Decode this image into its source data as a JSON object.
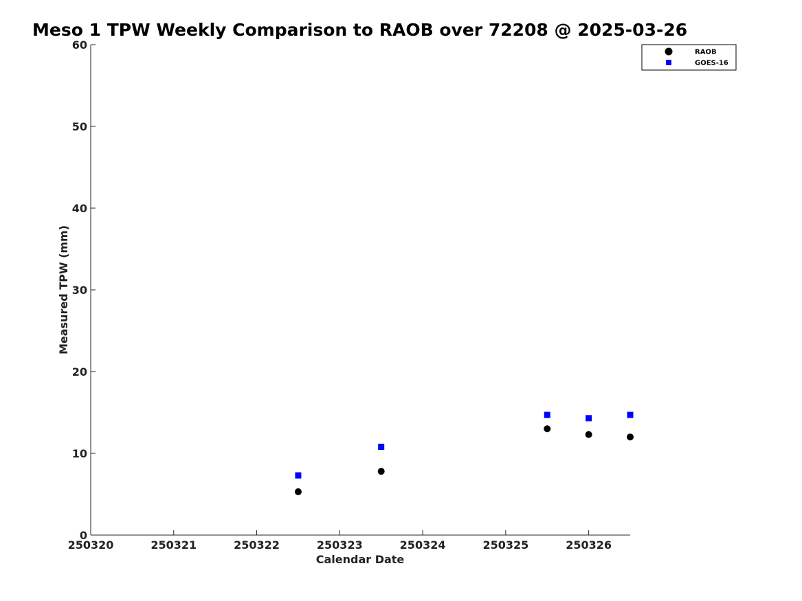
{
  "chart_data": {
    "type": "scatter",
    "title": "Meso 1 TPW Weekly Comparison to RAOB over 72208 @ 2025-03-26",
    "xlabel": "Calendar Date",
    "ylabel": "Measured TPW (mm)",
    "xlim": [
      250320,
      250326.5
    ],
    "ylim": [
      0,
      60
    ],
    "xticks": [
      250320,
      250321,
      250322,
      250323,
      250324,
      250325,
      250326
    ],
    "xtick_labels": [
      "250320",
      "250321",
      "250322",
      "250323",
      "250324",
      "250325",
      "250326"
    ],
    "yticks": [
      0,
      10,
      20,
      30,
      40,
      50,
      60
    ],
    "ytick_labels": [
      "0",
      "10",
      "20",
      "30",
      "40",
      "50",
      "60"
    ],
    "grid": false,
    "legend_position": "top-right",
    "series": [
      {
        "name": "RAOB",
        "marker": "circle",
        "color": "#000000",
        "x": [
          250322.5,
          250323.5,
          250325.5,
          250326,
          250326.5
        ],
        "y": [
          5.3,
          7.8,
          13.0,
          12.3,
          12.0
        ]
      },
      {
        "name": "GOES-16",
        "marker": "square",
        "color": "#0000ff",
        "x": [
          250322.5,
          250323.5,
          250325.5,
          250326,
          250326.5
        ],
        "y": [
          7.3,
          10.8,
          14.7,
          14.3,
          14.7
        ]
      }
    ]
  }
}
